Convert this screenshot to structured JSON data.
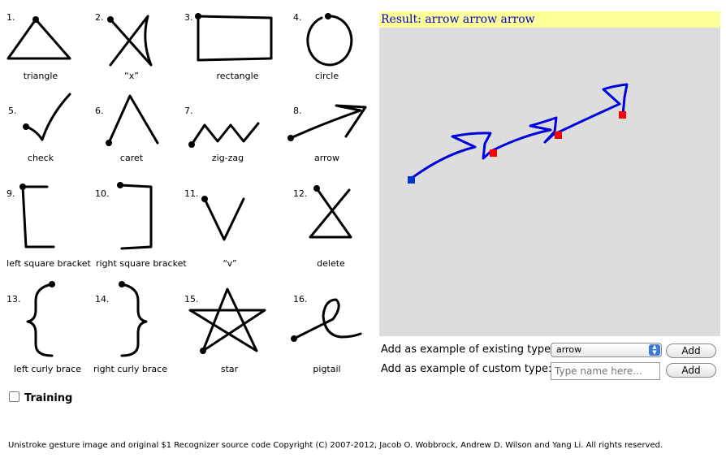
{
  "gestures": [
    {
      "num": "1.",
      "label": "triangle"
    },
    {
      "num": "2.",
      "label": "“x”"
    },
    {
      "num": "3.",
      "label": "rectangle"
    },
    {
      "num": "4.",
      "label": "circle"
    },
    {
      "num": "5.",
      "label": "check"
    },
    {
      "num": "6.",
      "label": "caret"
    },
    {
      "num": "7.",
      "label": "zig-zag"
    },
    {
      "num": "8.",
      "label": "arrow"
    },
    {
      "num": "9.",
      "label": "left square bracket"
    },
    {
      "num": "10.",
      "label": "right square bracket"
    },
    {
      "num": "11.",
      "label": "“v”"
    },
    {
      "num": "12.",
      "label": "delete"
    },
    {
      "num": "13.",
      "label": "left curly brace"
    },
    {
      "num": "14.",
      "label": "right curly brace"
    },
    {
      "num": "15.",
      "label": "star"
    },
    {
      "num": "16.",
      "label": "pigtail"
    }
  ],
  "result": {
    "prefix": "Result:",
    "text": "arrow arrow arrow"
  },
  "colors": {
    "stroke": "#0000dd",
    "start_marker": "#0033cc",
    "end_marker": "#ff0000",
    "result_bg": "#ffff99",
    "canvas_bg": "#dddddd"
  },
  "form": {
    "existing_label": "Add as example of existing type:",
    "existing_selected": "arrow",
    "custom_label": "Add as example of custom type:",
    "custom_placeholder": "Type name here...",
    "add_label": "Add"
  },
  "training": {
    "label": "Training",
    "checked": false
  },
  "footer": "Unistroke gesture image and original $1 Recognizer source code Copyright (C) 2007-2012, Jacob O. Wobbrock, Andrew D. Wilson and Yang Li. All rights reserved."
}
